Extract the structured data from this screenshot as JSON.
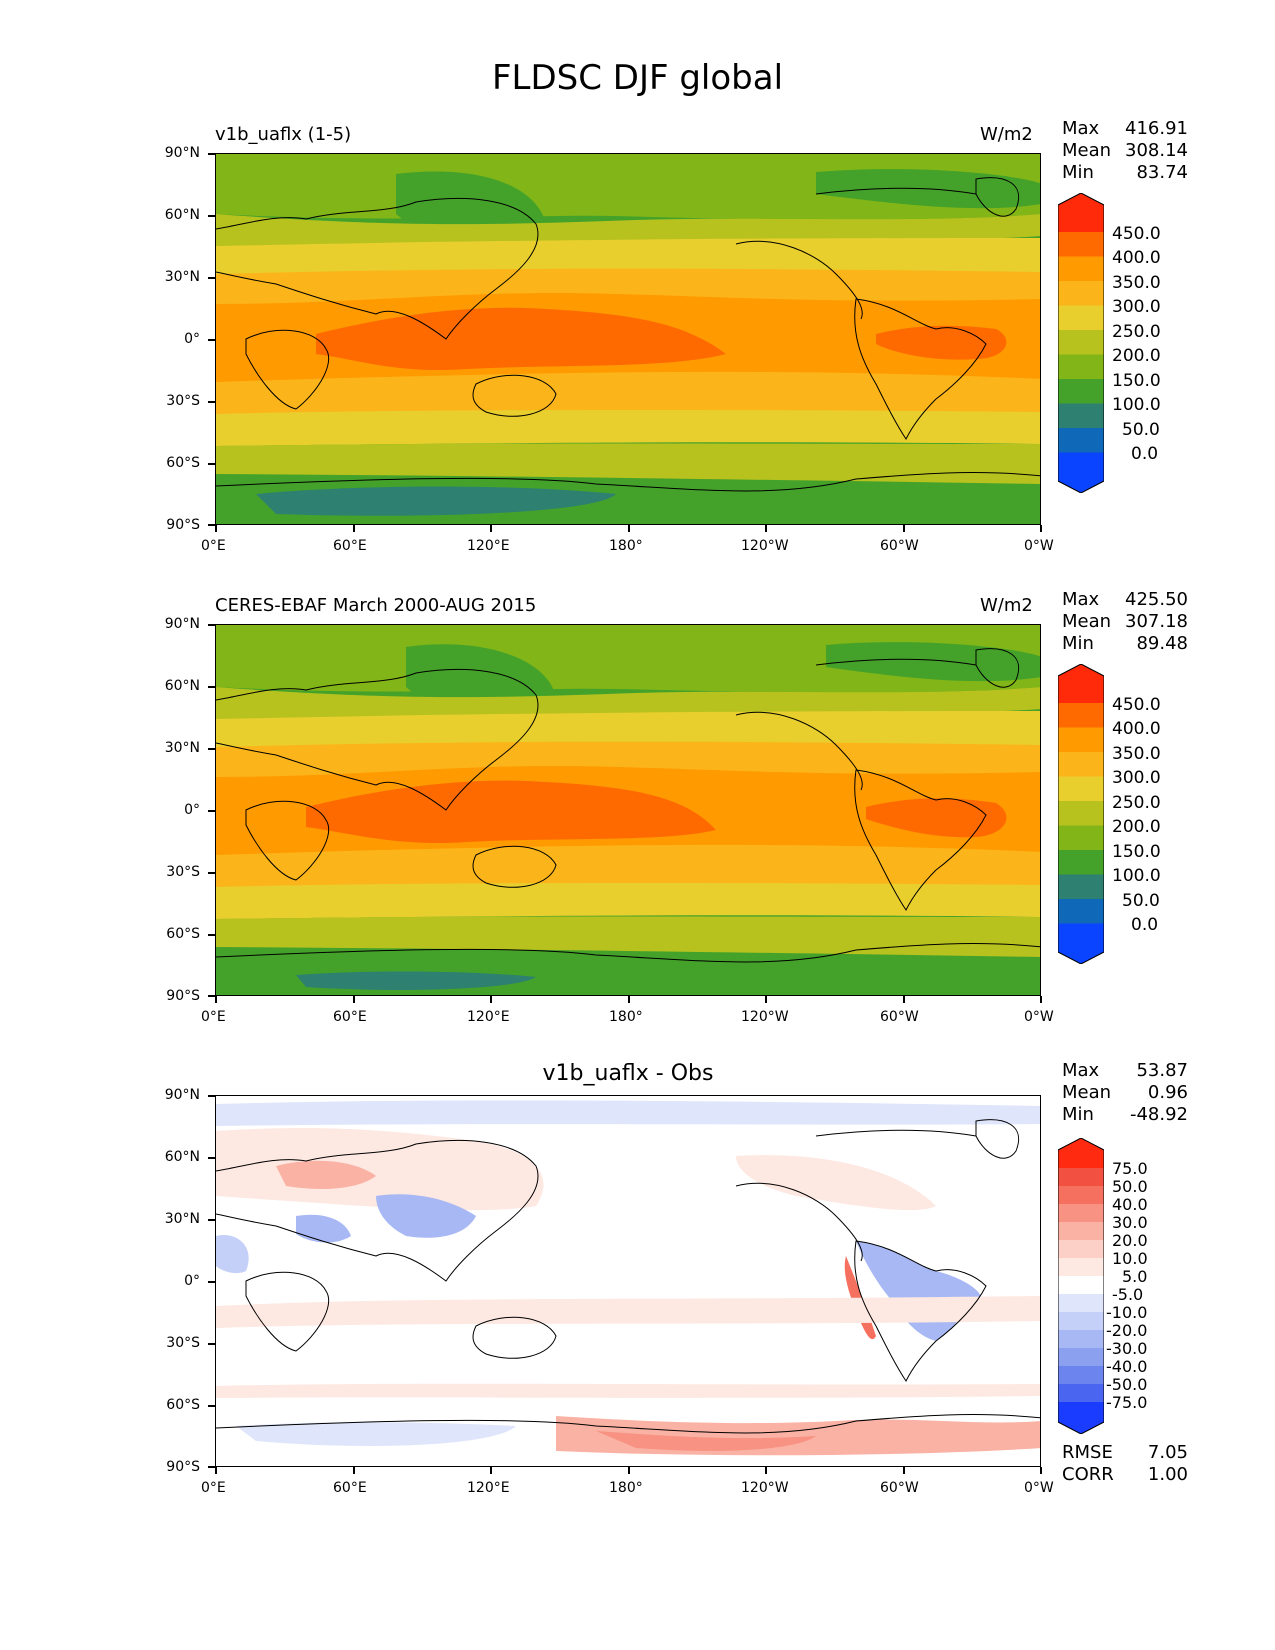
{
  "title": "FLDSC DJF global",
  "lat_ticks": [
    "90°N",
    "60°N",
    "30°N",
    "0°",
    "30°S",
    "60°S",
    "90°S"
  ],
  "lon_ticks": [
    "0°E",
    "60°E",
    "120°E",
    "180°",
    "120°W",
    "60°W",
    "0°W"
  ],
  "panels": [
    {
      "title_left": "v1b_uaflx (1-5)",
      "title_center": "",
      "units": "W/m2",
      "stats": [
        [
          "Max",
          "416.91"
        ],
        [
          "Mean",
          "308.14"
        ],
        [
          "Min",
          "83.74"
        ]
      ],
      "colorbar_labels": [
        "450.0",
        "400.0",
        "350.0",
        "300.0",
        "250.0",
        "200.0",
        "150.0",
        "100.0",
        "50.0",
        "0.0"
      ]
    },
    {
      "title_left": "CERES-EBAF March 2000-AUG 2015",
      "title_center": "",
      "units": "W/m2",
      "stats": [
        [
          "Max",
          "425.50"
        ],
        [
          "Mean",
          "307.18"
        ],
        [
          "Min",
          "89.48"
        ]
      ],
      "colorbar_labels": [
        "450.0",
        "400.0",
        "350.0",
        "300.0",
        "250.0",
        "200.0",
        "150.0",
        "100.0",
        "50.0",
        "0.0"
      ]
    },
    {
      "title_left": "",
      "title_center": "v1b_uaflx - Obs",
      "units": "",
      "stats": [
        [
          "Max",
          "53.87"
        ],
        [
          "Mean",
          "0.96"
        ],
        [
          "Min",
          "-48.92"
        ]
      ],
      "colorbar_labels": [
        "75.0",
        "50.0",
        "40.0",
        "30.0",
        "20.0",
        "10.0",
        "5.0",
        "-5.0",
        "-10.0",
        "-20.0",
        "-30.0",
        "-40.0",
        "-50.0",
        "-75.0"
      ],
      "extra_stats": [
        [
          "RMSE",
          "7.05"
        ],
        [
          "CORR",
          "1.00"
        ]
      ]
    }
  ],
  "colors": {
    "abs_cbar": [
      "#ff2a0a",
      "#ff6a00",
      "#ff9a00",
      "#fbb51a",
      "#e8cf2e",
      "#b8c21e",
      "#82b517",
      "#44a22a",
      "#2e8070",
      "#1068b8",
      "#0a44ff"
    ],
    "diff_cbar": [
      "#ff2a10",
      "#f25040",
      "#f5705e",
      "#f89282",
      "#fab2a4",
      "#fcd0c6",
      "#fde8e2",
      "#ffffff",
      "#dfe6fb",
      "#c4d0f7",
      "#a8b8f4",
      "#8ca0f0",
      "#6c84ee",
      "#4a66f0",
      "#1a3cff"
    ]
  }
}
